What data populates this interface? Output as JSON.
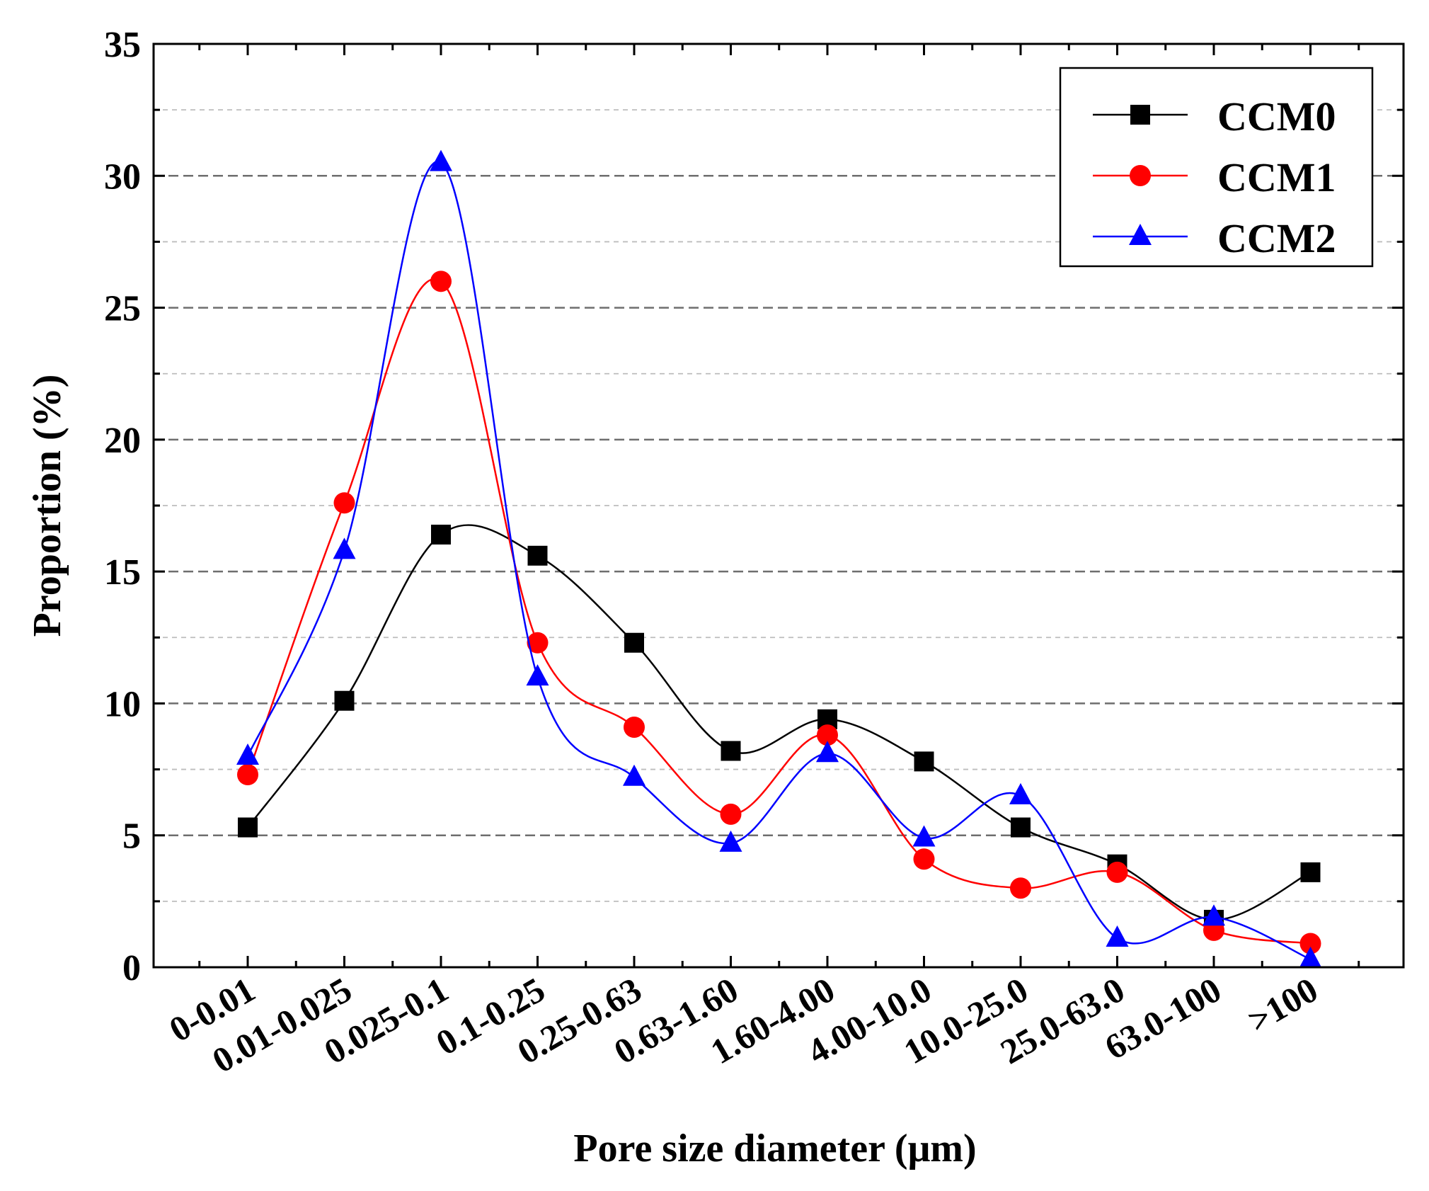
{
  "chart_data": {
    "type": "line",
    "title": "",
    "xlabel": "Pore size diameter (μm)",
    "ylabel": "Proportion (%)",
    "ylim": [
      0,
      35
    ],
    "yticks": [
      0,
      5,
      10,
      15,
      20,
      25,
      30,
      35
    ],
    "grid": true,
    "legend_position": "top-right",
    "categories": [
      "0-0.01",
      "0.01-0.025",
      "0.025-0.1",
      "0.1-0.25",
      "0.25-0.63",
      "0.63-1.60",
      "1.60-4.00",
      "4.00-10.0",
      "10.0-25.0",
      "25.0-63.0",
      "63.0-100",
      ">100"
    ],
    "series": [
      {
        "name": "CCM0",
        "color": "#000000",
        "marker": "square",
        "values": [
          5.3,
          10.1,
          16.4,
          15.6,
          12.3,
          8.2,
          9.4,
          7.8,
          5.3,
          3.9,
          1.8,
          3.6
        ]
      },
      {
        "name": "CCM1",
        "color": "#ff0000",
        "marker": "circle",
        "values": [
          7.3,
          17.6,
          26.0,
          12.3,
          9.1,
          5.8,
          8.8,
          4.1,
          3.0,
          3.6,
          1.4,
          0.9
        ]
      },
      {
        "name": "CCM2",
        "color": "#0000ff",
        "marker": "triangle",
        "values": [
          8.0,
          15.8,
          30.5,
          11.0,
          7.2,
          4.7,
          8.1,
          4.9,
          6.5,
          1.1,
          1.9,
          0.3
        ]
      }
    ]
  }
}
